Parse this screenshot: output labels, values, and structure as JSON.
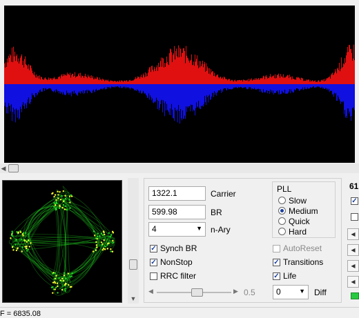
{
  "spectrum": {
    "colors": {
      "upper": "#e01010",
      "lower": "#1010e0",
      "background": "#000000"
    }
  },
  "constellation": {
    "colors": {
      "trace": "#22dd22",
      "hot": "#ffff33"
    }
  },
  "controls": {
    "carrier_value": "1322.1",
    "carrier_label": "Carrier",
    "br_value": "599.98",
    "br_label": "BR",
    "nary_value": "4",
    "nary_label": "n-Ary",
    "synch_br": {
      "label": "Synch BR",
      "checked": true
    },
    "nonstop": {
      "label": "NonStop",
      "checked": true
    },
    "rrc_filter": {
      "label": "RRC filter",
      "checked": false
    },
    "slider_value": "0.5",
    "slider_level": 0.55,
    "pll": {
      "title": "PLL",
      "options": [
        "Slow",
        "Medium",
        "Quick",
        "Hard"
      ],
      "selected": "Medium"
    },
    "autoreset": {
      "label": "AutoReset",
      "checked": false,
      "enabled": false
    },
    "transitions": {
      "label": "Transitions",
      "checked": true
    },
    "life": {
      "label": "Life",
      "checked": true
    },
    "diff_value": "0",
    "diff_label": "Diff"
  },
  "right_panel": {
    "label": "61"
  },
  "status": {
    "text": "F = 6835.08"
  }
}
